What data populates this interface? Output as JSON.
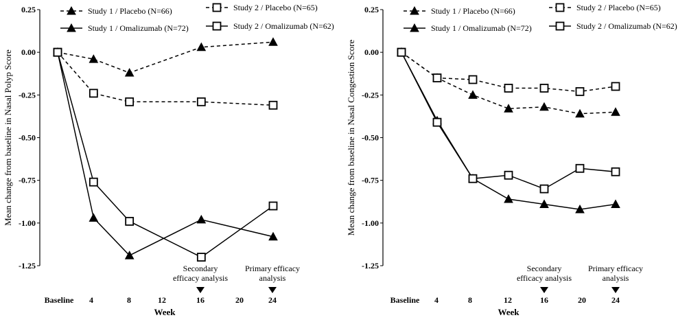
{
  "chart_data": [
    {
      "type": "line",
      "title": "",
      "xlabel": "Week",
      "ylabel": "Mean change from baseline in Nasal Polyp Score",
      "x_tick_labels": [
        "Baseline",
        "4",
        "8",
        "12",
        "16",
        "20",
        "24"
      ],
      "x_values": [
        0,
        4,
        8,
        16,
        24
      ],
      "ylim": [
        -1.25,
        0.25
      ],
      "y_tick_labels": [
        "0.25",
        "0.00",
        "-0.25",
        "-0.50",
        "-0.75",
        "-1.00",
        "-1.25"
      ],
      "legend_position": "top",
      "annotations": [
        {
          "week": 16,
          "lines": [
            "Secondary",
            "efficacy analysis"
          ]
        },
        {
          "week": 24,
          "lines": [
            "Primary efficacy",
            "analysis"
          ]
        }
      ],
      "series": [
        {
          "name": "Study 1 / Placebo (N=66)",
          "marker": "triangle",
          "dashed": true,
          "values": [
            0.0,
            -0.04,
            -0.12,
            0.03,
            0.06
          ]
        },
        {
          "name": "Study 2 / Placebo (N=65)",
          "marker": "square",
          "dashed": true,
          "values": [
            0.0,
            -0.24,
            -0.29,
            -0.29,
            -0.31
          ]
        },
        {
          "name": "Study 1 / Omalizumab (N=72)",
          "marker": "triangle",
          "dashed": false,
          "values": [
            0.0,
            -0.97,
            -1.19,
            -0.98,
            -1.08
          ]
        },
        {
          "name": "Study 2 / Omalizumab (N=62)",
          "marker": "square",
          "dashed": false,
          "values": [
            0.0,
            -0.76,
            -0.99,
            -1.2,
            -0.9
          ]
        }
      ]
    },
    {
      "type": "line",
      "title": "",
      "xlabel": "Week",
      "ylabel": "Mean change from baseline in Nasal Congestion Score",
      "x_tick_labels": [
        "Baseline",
        "4",
        "8",
        "12",
        "16",
        "20",
        "24"
      ],
      "x_values": [
        0,
        4,
        8,
        12,
        16,
        20,
        24
      ],
      "ylim": [
        -1.25,
        0.25
      ],
      "y_tick_labels": [
        "0.25",
        "0.00",
        "-0.25",
        "-0.50",
        "-0.75",
        "-1.00",
        "-1.25"
      ],
      "legend_position": "top",
      "annotations": [
        {
          "week": 16,
          "lines": [
            "Secondary",
            "efficacy analysis"
          ]
        },
        {
          "week": 24,
          "lines": [
            "Primary efficacy",
            "analysis"
          ]
        }
      ],
      "series": [
        {
          "name": "Study 1 / Placebo (N=66)",
          "marker": "triangle",
          "dashed": true,
          "values": [
            0.0,
            -0.15,
            -0.25,
            -0.33,
            -0.32,
            -0.36,
            -0.35
          ]
        },
        {
          "name": "Study 2 / Placebo (N=65)",
          "marker": "square",
          "dashed": true,
          "values": [
            0.0,
            -0.15,
            -0.16,
            -0.21,
            -0.21,
            -0.23,
            -0.2
          ]
        },
        {
          "name": "Study 1 / Omalizumab (N=72)",
          "marker": "triangle",
          "dashed": false,
          "values": [
            0.0,
            -0.4,
            -0.74,
            -0.86,
            -0.89,
            -0.92,
            -0.89
          ]
        },
        {
          "name": "Study 2 / Omalizumab (N=62)",
          "marker": "square",
          "dashed": false,
          "values": [
            0.0,
            -0.41,
            -0.74,
            -0.72,
            -0.8,
            -0.68,
            -0.7
          ]
        }
      ]
    }
  ]
}
